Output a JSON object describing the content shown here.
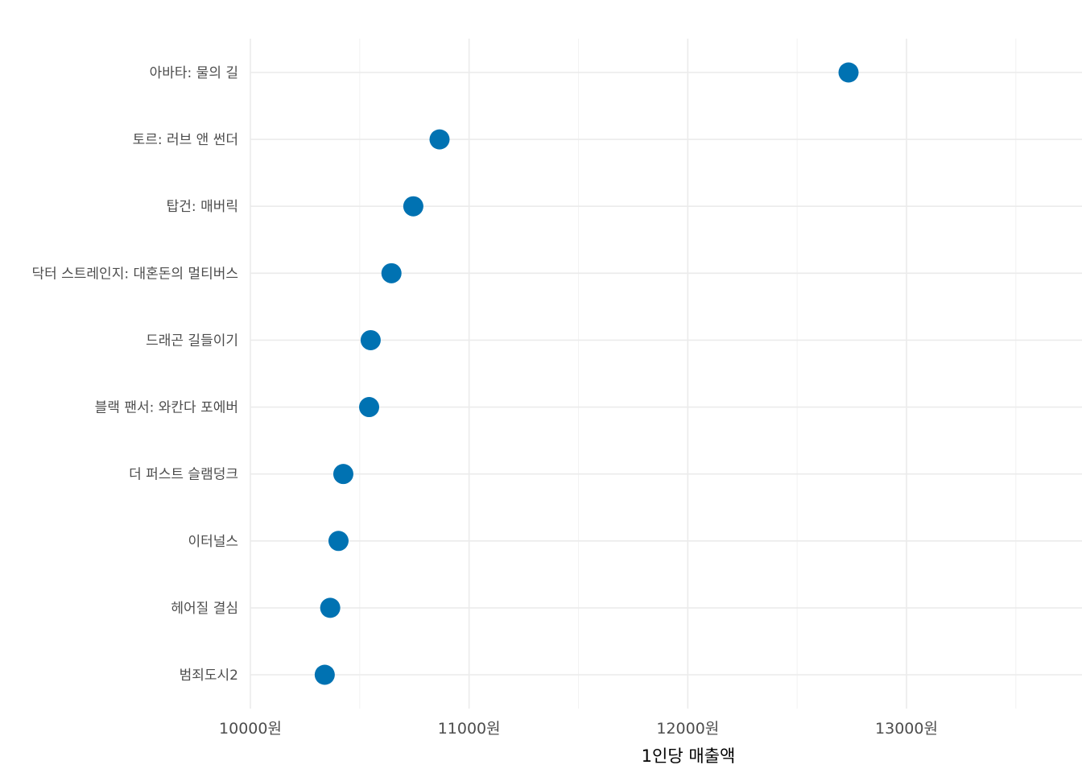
{
  "chart_data": {
    "type": "scatter",
    "title": "",
    "xlabel": "1인당 매출액",
    "ylabel": "",
    "x_unit_suffix": "원",
    "xlim": [
      10000,
      13750
    ],
    "x_ticks": [
      10000,
      11000,
      12000,
      13000
    ],
    "x_tick_labels": [
      "10000원",
      "11000원",
      "12000원",
      "13000원"
    ],
    "grid": true,
    "legend": "none",
    "categories": [
      "아바타: 물의 길",
      "토르: 러브 앤 썬더",
      "탑건: 매버릭",
      "닥터 스트레인지: 대혼돈의 멀티버스",
      "드래곤 길들이기",
      "블랙 팬서: 와칸다 포에버",
      "더 퍼스트 슬램덩크",
      "이터널스",
      "헤어질 결심",
      "범죄도시2"
    ],
    "values": [
      12735,
      10865,
      10745,
      10645,
      10550,
      10543,
      10425,
      10403,
      10365,
      10340
    ],
    "point_color": "#0072B2"
  }
}
